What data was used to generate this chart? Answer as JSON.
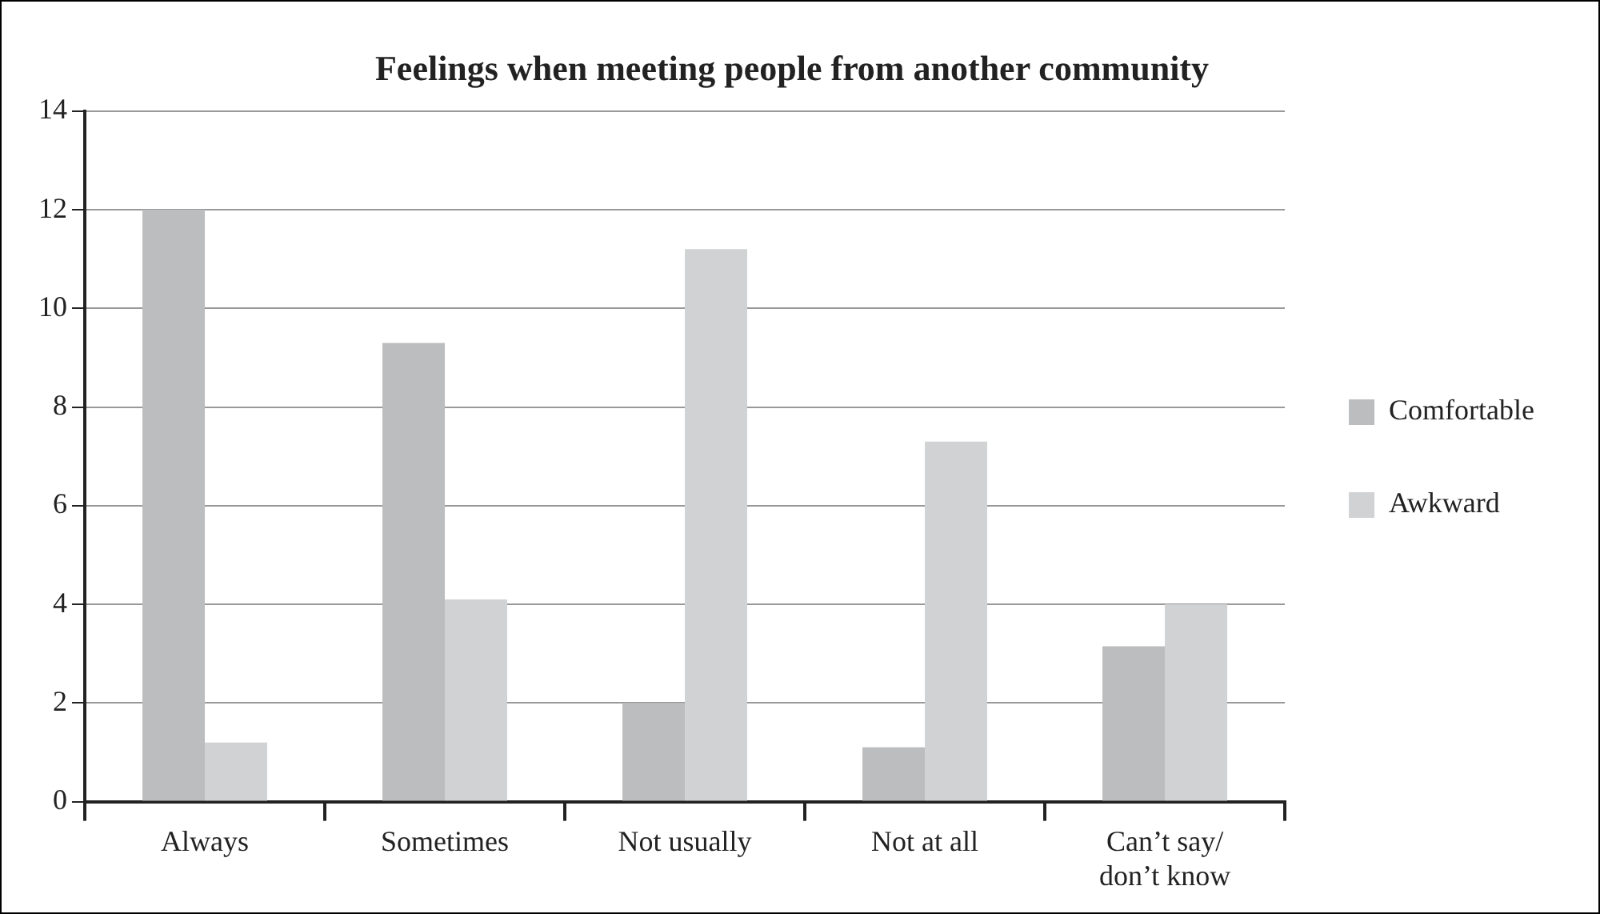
{
  "chart_data": {
    "type": "bar",
    "title": "Feelings when meeting people from another community",
    "categories": [
      "Always",
      "Sometimes",
      "Not usually",
      "Not at all",
      "Can’t say/ don’t know"
    ],
    "series": [
      {
        "name": "Comfortable",
        "color": "#bcbdbf",
        "values": [
          12,
          9.3,
          2,
          1.1,
          3.15
        ]
      },
      {
        "name": "Awkward",
        "color": "#d1d2d4",
        "values": [
          1.2,
          4.1,
          11.2,
          7.3,
          4
        ]
      }
    ],
    "ylim": [
      0,
      14
    ],
    "yticks": [
      0,
      2,
      4,
      6,
      8,
      10,
      12,
      14
    ],
    "grid": "y",
    "legend": "right"
  }
}
